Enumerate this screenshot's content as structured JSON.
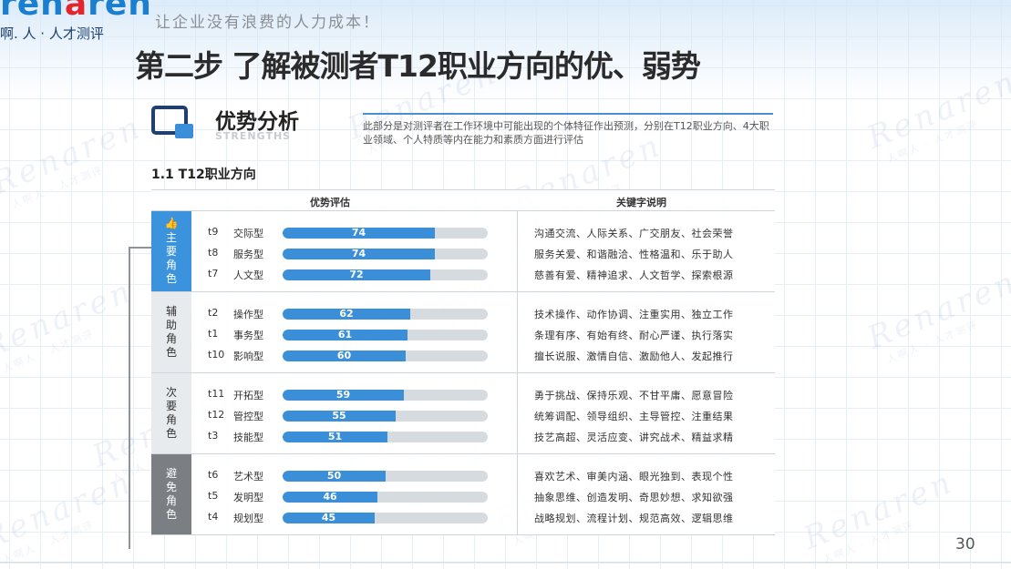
{
  "brand": {
    "logo_main": "ren",
    "logo_accent": "a",
    "logo_tail": "ren",
    "logo_sub": "啊. 人 · 人才测评",
    "slogan": "让企业没有浪费的人力成本！",
    "watermark_text": "Renaren",
    "watermark_sub": "人啊人 · 人才测评"
  },
  "slide": {
    "title": "第二步  了解被测者T12职业方向的优、弱势",
    "page_number": "30"
  },
  "section": {
    "title": "优势分析",
    "subtitle": "STRENGTHS",
    "description": "此部分是对测评者在工作环境中可能出现的个体特征作出预测，分别在T12职业方向、4大职业领域、个人特质等内在能力和素质方面进行评估",
    "subheading": "1.1 T12职业方向"
  },
  "table": {
    "header_left": "优势评估",
    "header_right": "关键字说明",
    "max_score": 100,
    "groups": [
      {
        "label": "主要角色",
        "icon": "thumbs-up-icon",
        "bg": "#3a93dc",
        "fg": "#ffffff",
        "rows": [
          {
            "code": "t9",
            "name": "交际型",
            "score": 74,
            "keywords": "沟通交流、人际关系、广交朋友、社会荣誉"
          },
          {
            "code": "t8",
            "name": "服务型",
            "score": 74,
            "keywords": "服务关爱、和谐融洽、性格温和、乐于助人"
          },
          {
            "code": "t7",
            "name": "人文型",
            "score": 72,
            "keywords": "慈善有爱、精神追求、人文哲学、探索根源"
          }
        ]
      },
      {
        "label": "辅助角色",
        "icon": "",
        "bg": "#e8ebee",
        "fg": "#333333",
        "rows": [
          {
            "code": "t2",
            "name": "操作型",
            "score": 62,
            "keywords": "技术操作、动作协调、注重实用、独立工作"
          },
          {
            "code": "t1",
            "name": "事务型",
            "score": 61,
            "keywords": "条理有序、有始有终、耐心严谨、执行落实"
          },
          {
            "code": "t10",
            "name": "影响型",
            "score": 60,
            "keywords": "擅长说服、激情自信、激励他人、发起推行"
          }
        ]
      },
      {
        "label": "次要角色",
        "icon": "",
        "bg": "#e8ebee",
        "fg": "#333333",
        "rows": [
          {
            "code": "t11",
            "name": "开拓型",
            "score": 59,
            "keywords": "勇于挑战、保持乐观、不甘平庸、愿意冒险"
          },
          {
            "code": "t12",
            "name": "管控型",
            "score": 55,
            "keywords": "统筹调配、领导组织、主导管控、注重结果"
          },
          {
            "code": "t3",
            "name": "技能型",
            "score": 51,
            "keywords": "技艺高超、灵活应变、讲究战术、精益求精"
          }
        ]
      },
      {
        "label": "避免角色",
        "icon": "",
        "bg": "#7b7f84",
        "fg": "#ffffff",
        "rows": [
          {
            "code": "t6",
            "name": "艺术型",
            "score": 50,
            "keywords": "喜欢艺术、审美内涵、眼光独到、表现个性"
          },
          {
            "code": "t5",
            "name": "发明型",
            "score": 46,
            "keywords": "抽象思维、创造发明、奇思妙想、求知欲强"
          },
          {
            "code": "t4",
            "name": "规划型",
            "score": 45,
            "keywords": "战略规划、流程计划、规范高效、逻辑思维"
          }
        ]
      }
    ]
  }
}
